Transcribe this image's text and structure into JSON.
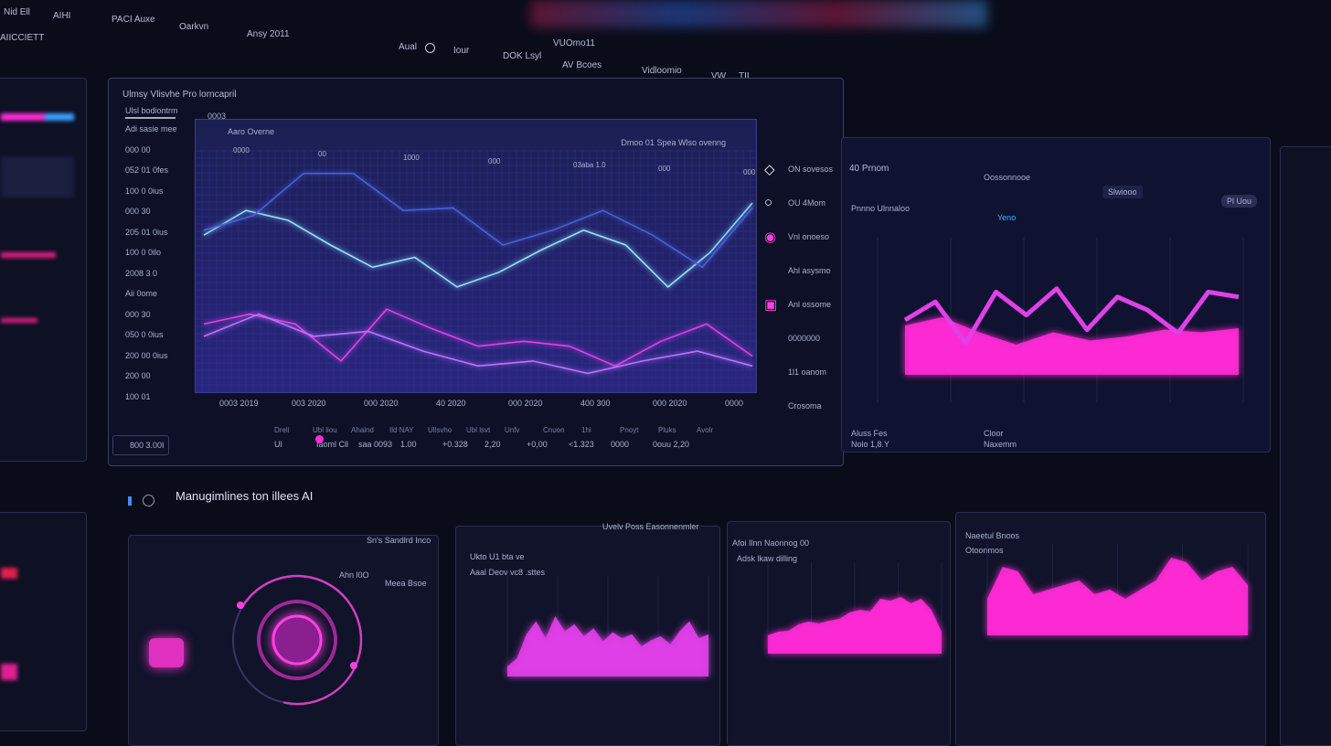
{
  "topbar": {
    "items": [
      "Nid Ell",
      "AIHI",
      "PACI Auxe",
      "Oarkvn",
      "Ansy 2011"
    ],
    "brand": "AIICCIETT",
    "nav": [
      "Aual",
      "Iour",
      "DOK Lsyl",
      "AV Bcoes",
      "Vidloomio",
      "VW",
      "TII"
    ],
    "center": "VUOmo11"
  },
  "colors": {
    "bg": "#0a0c1a",
    "cyan": "#7fd6ff",
    "blue": "#4a5fd8",
    "pink": "#e040e8",
    "magenta": "#ff2bd6",
    "grid": "#2b3170"
  },
  "main_panel": {
    "title": "Ulmsy Vlisvhe Pro lorncapril",
    "sidebar_header": "Ulsl bodiontrm",
    "sidebar_items": [
      "Adi sasie mee",
      "000 00",
      "052 01 0fes",
      "100 0 0ius",
      "000 30",
      "205 01 0ius",
      "100 0 0ilo",
      "2008 3 0",
      "Aii 0ome",
      "000 30",
      "050 0 0ius",
      "200 00 0ius",
      "200 00",
      "100 01"
    ],
    "tab": "0003",
    "footer_value": "800 3.00I",
    "chart_data": {
      "type": "line",
      "title": "Aaro Overne",
      "top_labels": [
        "0000",
        "00",
        "1000",
        "000",
        "03aba 1.0",
        "000",
        "000"
      ],
      "x_ticks": [
        "0003 2019",
        "003 2020",
        "000 2020",
        "40 2020",
        "000 2020",
        "400 300",
        "000 2020",
        "0000"
      ],
      "legend_header": "Dmoo 01 Spea Wlso ovenng",
      "series": [
        {
          "color": "#8fe4ff",
          "values": [
            64,
            74,
            70,
            60,
            51,
            55,
            43,
            49,
            58,
            66,
            60,
            43,
            57,
            77
          ]
        },
        {
          "color": "#4a5fd8",
          "values": [
            66,
            72,
            89,
            89,
            74,
            75,
            60,
            66,
            74,
            64,
            51,
            75
          ]
        },
        {
          "color": "#e040e8",
          "values": [
            28,
            32,
            28,
            13,
            34,
            26,
            19,
            21,
            19,
            11,
            21,
            28,
            15
          ]
        },
        {
          "color": "#c070ff",
          "values": [
            23,
            32,
            23,
            25,
            17,
            11,
            13,
            8,
            13,
            17,
            11
          ]
        }
      ],
      "ylim": [
        0,
        100
      ]
    },
    "legend": [
      {
        "icon": "diamond-icon",
        "label": "ON sovesos"
      },
      {
        "icon": "circle-icon",
        "label": "OU 4Mom"
      },
      {
        "icon": "pin-icon",
        "label": "Vnl onoeso"
      },
      {
        "icon": "none",
        "label": "Ahl asysmo"
      },
      {
        "icon": "square-icon",
        "label": "Anl ossome"
      },
      {
        "icon": "none",
        "label": "0000000"
      },
      {
        "icon": "none",
        "label": "1l1 oanom"
      },
      {
        "icon": "none",
        "label": "Crosoma"
      }
    ],
    "stats_headers": [
      "Dreli",
      "Ubl liou",
      "Ahalnd",
      "Ild NAY",
      "Ullsvho",
      "Ubl lsvt",
      "Unfv",
      "Cnuon",
      "1hi",
      "Pnoyt",
      "Pluks",
      "Avolr"
    ],
    "stats_values": [
      "Ul",
      "Iaoml Cll",
      "saa 0093",
      "1.00",
      "+0.328",
      "2,20",
      "+0,00",
      "<1.323",
      "0000",
      "0ouu 2,20"
    ]
  },
  "right_panel": {
    "title": "40 Prnom",
    "subtitle": "Oossonnooe",
    "badge": "Slwiooo",
    "tabs": [
      "Pnnno Ulnnaloo",
      "Yeno"
    ],
    "button": "Pl Uou",
    "chart_data": {
      "type": "area",
      "line": {
        "color": "#e040e8",
        "values": [
          50,
          61,
          36,
          67,
          53,
          69,
          44,
          64,
          56,
          42,
          67,
          64
        ]
      },
      "area": {
        "color": "#ff2bd6",
        "values": [
          36,
          42,
          31,
          22,
          31,
          25,
          28,
          33,
          31,
          34
        ]
      },
      "ylim": [
        0,
        100
      ]
    },
    "footer": [
      "Aluss Fes",
      "Nolo 1,8.Y",
      "Cloor",
      "Naxemm"
    ]
  },
  "bottom": {
    "title": "Manugimlines ton illees AI",
    "panels": [
      {
        "title": "Sn's Sandlrd Inco",
        "gauge_label": "Meea Bsoe",
        "gauge_sub": "Ahn l0O",
        "gauge_value": 0.7
      },
      {
        "title": "Uvelv Poss Easonnenmler",
        "sub": "Ukto U1 bta ve",
        "sub2": "Aaal Deov vc8 .sttes",
        "chart_data": {
          "type": "area",
          "color": "#e040e8",
          "values": [
            10,
            18,
            42,
            55,
            38,
            60,
            45,
            52,
            40,
            48,
            35,
            44,
            38,
            42,
            30,
            36,
            40,
            32,
            45,
            55,
            38,
            42
          ]
        }
      },
      {
        "title": "Afoi Ilnn Naonnog 00",
        "sub": "Adsk lkaw dilling",
        "chart_data": {
          "type": "area",
          "color": "#ff2bd6",
          "values": [
            20,
            24,
            25,
            32,
            35,
            33,
            36,
            38,
            45,
            48,
            46,
            60,
            58,
            62,
            55,
            60,
            48,
            24
          ]
        }
      },
      {
        "title": "Naeetul Bnoos",
        "sub": "Otoonmos",
        "chart_data": {
          "type": "area",
          "color": "#ff2bd6",
          "values": [
            40,
            75,
            70,
            45,
            50,
            55,
            60,
            45,
            50,
            40,
            50,
            60,
            85,
            80,
            60,
            70,
            75,
            55
          ]
        }
      }
    ]
  }
}
